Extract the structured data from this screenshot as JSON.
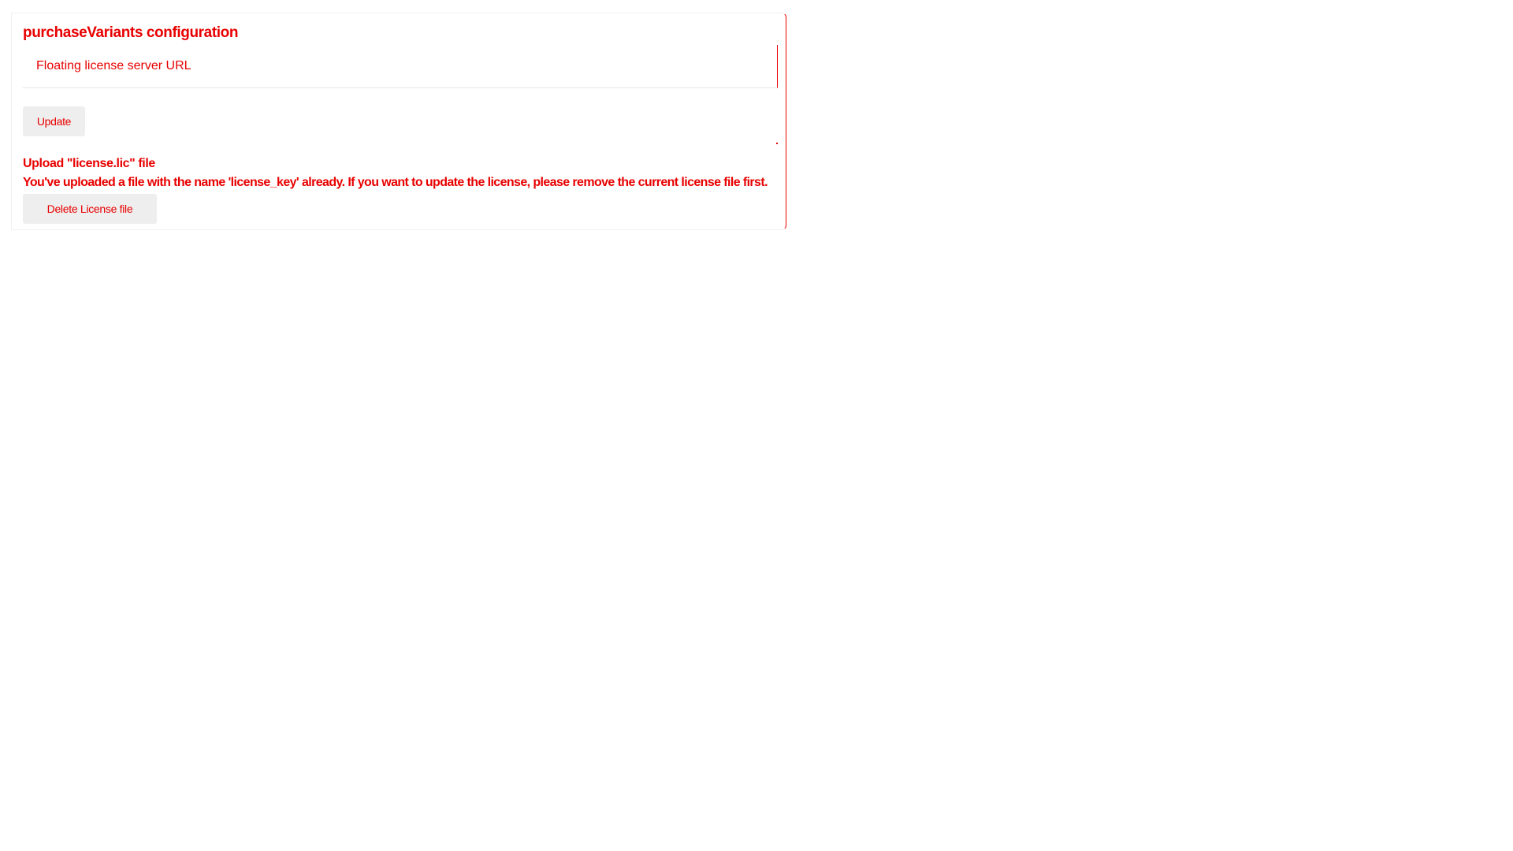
{
  "config": {
    "title": "purchaseVariants configuration",
    "url_input": {
      "placeholder": "Floating license server URL",
      "value": ""
    },
    "update_label": "Update",
    "upload_label": "Upload \"license.lic\" file",
    "notice": "You've uploaded a file with the name 'license_key' already. If you want to update the license, please remove the current license file first.",
    "delete_label": "Delete License file"
  },
  "colors": {
    "accent": "#e80000",
    "button_bg": "#eeeeee",
    "divider": "#e6e6e6"
  }
}
